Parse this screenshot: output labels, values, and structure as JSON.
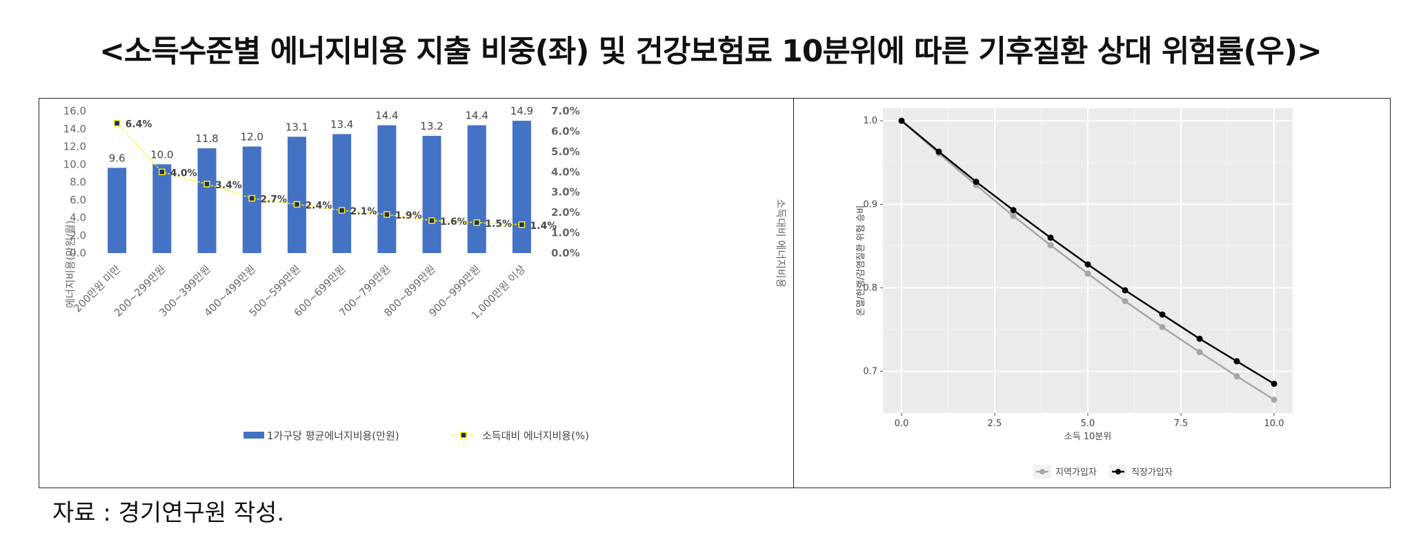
{
  "title": "<소득수준별 에너지비용 지출 비중(좌) 및 건강보험료 10분위에 따른 기후질환 상대 위험률(우)>",
  "source": "자료 : 경기연구원 작성.",
  "colors": {
    "bar": "#4472C4",
    "line": "#FFF200",
    "marker": "#1F2A6B",
    "marker_edge": "#FFF200",
    "panel_bg": "#EBEBEB",
    "series_gray": "#A6A6A6",
    "series_black": "#000000"
  },
  "chart_data": [
    {
      "type": "bar",
      "categories": [
        "200만원 미만",
        "200~299만원",
        "300~399만원",
        "400~499만원",
        "500~599만원",
        "600~699만원",
        "700~799만원",
        "800~899만원",
        "900~999만원",
        "1,000만원 이상"
      ],
      "series": [
        {
          "name": "1가구당 평균에너지비용(만원)",
          "type": "bar",
          "axis": "left",
          "values": [
            9.6,
            10.0,
            11.8,
            12.0,
            13.1,
            13.4,
            14.4,
            13.2,
            14.4,
            14.9
          ],
          "labels": [
            "9.6",
            "10.0",
            "11.8",
            "12.0",
            "13.1",
            "13.4",
            "14.4",
            "13.2",
            "14.4",
            "14.9"
          ]
        },
        {
          "name": "소득대비 에너지비용(%)",
          "type": "line",
          "axis": "right",
          "values": [
            6.4,
            4.0,
            3.4,
            2.7,
            2.4,
            2.1,
            1.9,
            1.6,
            1.5,
            1.4
          ],
          "labels": [
            "6.4%",
            "4.0%",
            "3.4%",
            "2.7%",
            "2.4%",
            "2.1%",
            "1.9%",
            "1.6%",
            "1.5%",
            "1.4%"
          ]
        }
      ],
      "ylabel": "에너지비용(만원/월)",
      "ylabel_right": "소득대비 에너지비용",
      "ylim": [
        0,
        16
      ],
      "ylim_right": [
        0,
        7
      ],
      "yticks": [
        "0.0",
        "2.0",
        "4.0",
        "6.0",
        "8.0",
        "10.0",
        "12.0",
        "14.0",
        "16.0"
      ],
      "yticks_right": [
        "0.0%",
        "1.0%",
        "2.0%",
        "3.0%",
        "4.0%",
        "5.0%",
        "6.0%",
        "7.0%"
      ],
      "legend": [
        "1가구당 평균에너지비용(만원)",
        "소득대비 에너지비용(%)"
      ],
      "legend_position": "bottom",
      "grid": false
    },
    {
      "type": "line",
      "x": [
        0,
        1,
        2,
        3,
        4,
        5,
        6,
        7,
        8,
        9,
        10
      ],
      "series": [
        {
          "name": "지역가입자",
          "color": "gray",
          "values": [
            1.0,
            0.961,
            0.923,
            0.886,
            0.851,
            0.817,
            0.784,
            0.753,
            0.723,
            0.694,
            0.666
          ]
        },
        {
          "name": "직장가입자",
          "color": "black",
          "values": [
            1.0,
            0.963,
            0.927,
            0.893,
            0.86,
            0.828,
            0.797,
            0.768,
            0.739,
            0.712,
            0.685
          ]
        }
      ],
      "xlabel": "소득 10분위",
      "ylabel": "온열/한랭/감염질환 위험 승비",
      "xlim": [
        -0.5,
        10.5
      ],
      "ylim": [
        0.65,
        1.015
      ],
      "xticks": [
        "0.0",
        "2.5",
        "5.0",
        "7.5",
        "10.0"
      ],
      "yticks": [
        "0.7",
        "0.8",
        "0.9",
        "1.0"
      ],
      "legend_position": "bottom",
      "grid": true
    }
  ]
}
